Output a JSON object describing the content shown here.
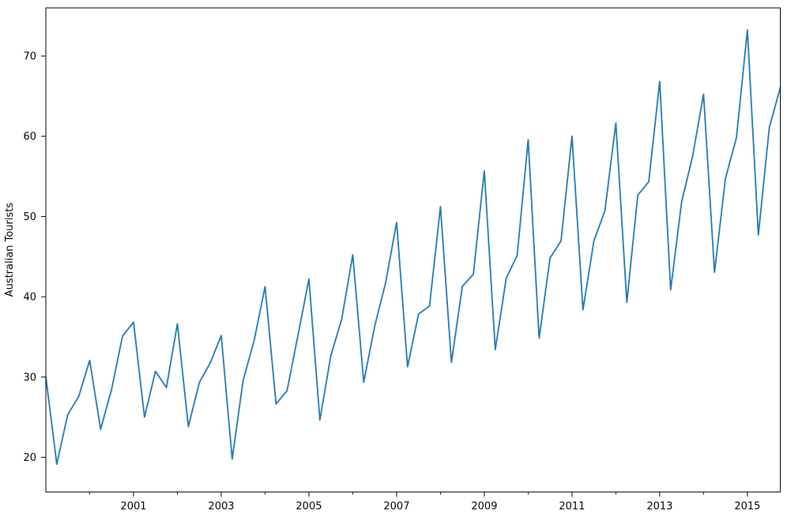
{
  "chart_data": {
    "type": "line",
    "title": "",
    "xlabel": "",
    "ylabel": "Australian Tourists",
    "x_start": 1999.0,
    "x_step": 0.25,
    "x_unit": "year (quarterly observations)",
    "series": [
      {
        "name": "Australian Tourists",
        "color": "#1f77b4",
        "values": [
          30.05,
          19.15,
          25.32,
          27.59,
          32.08,
          23.49,
          28.48,
          35.12,
          36.84,
          25.01,
          30.72,
          28.69,
          36.64,
          23.82,
          29.31,
          31.77,
          35.18,
          19.78,
          29.6,
          34.54,
          41.27,
          26.66,
          28.28,
          35.19,
          42.21,
          24.65,
          32.67,
          37.26,
          45.24,
          29.35,
          36.34,
          41.78,
          49.28,
          31.28,
          37.85,
          38.84,
          51.24,
          31.84,
          41.32,
          42.8,
          55.71,
          33.41,
          42.32,
          45.16,
          59.58,
          34.84,
          44.84,
          46.97,
          60.02,
          38.37,
          46.98,
          50.73,
          61.65,
          39.3,
          52.67,
          54.33,
          66.83,
          40.87,
          51.83,
          57.49,
          65.25,
          43.06,
          54.76,
          59.83,
          73.26,
          47.7,
          61.1,
          66.06
        ]
      }
    ],
    "xlim": [
      1999.0,
      2015.75
    ],
    "ylim": [
      15.68,
      76.0
    ],
    "x_ticks_major": {
      "values": [
        2001,
        2003,
        2005,
        2007,
        2009,
        2011,
        2013,
        2015
      ],
      "labels": [
        "2001",
        "2003",
        "2005",
        "2007",
        "2009",
        "2011",
        "2013",
        "2015"
      ]
    },
    "x_ticks_minor": [
      2000,
      2002,
      2004,
      2006,
      2008,
      2010,
      2012,
      2014
    ],
    "y_ticks": {
      "values": [
        20,
        30,
        40,
        50,
        60,
        70
      ],
      "labels": [
        "20",
        "30",
        "40",
        "50",
        "60",
        "70"
      ]
    },
    "grid": false,
    "legend": "none",
    "axes_line_color": "#000000",
    "background_color": "#ffffff"
  }
}
